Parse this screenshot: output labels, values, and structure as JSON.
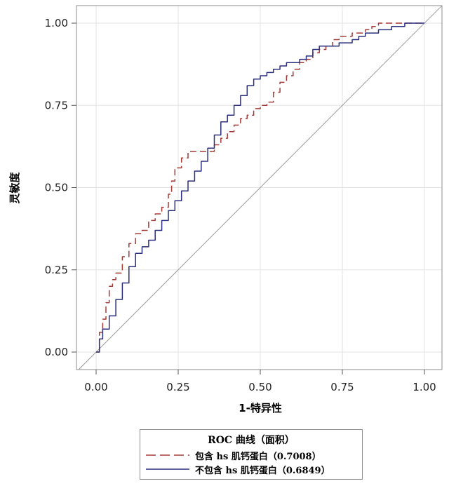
{
  "chart_data": {
    "type": "line",
    "title": "",
    "xlabel": "1-特异性",
    "ylabel": "灵敏度",
    "xlim": [
      0,
      1
    ],
    "ylim": [
      0,
      1
    ],
    "x_ticks": [
      "0.00",
      "0.25",
      "0.50",
      "0.75",
      "1.00"
    ],
    "y_ticks": [
      "0.00",
      "0.25",
      "0.50",
      "0.75",
      "1.00"
    ],
    "grid": true,
    "legend_title": "ROC 曲线（面积）",
    "legend_position": "bottom-center",
    "reference_line": {
      "x": [
        0,
        1
      ],
      "y": [
        0,
        1
      ],
      "color": "#9a9a9a"
    },
    "series": [
      {
        "name": "包含 hs 肌钙蛋白（0.7008）",
        "color": "#a33b36",
        "dash": true,
        "x": [
          0,
          0.01,
          0.02,
          0.03,
          0.04,
          0.05,
          0.06,
          0.08,
          0.1,
          0.12,
          0.14,
          0.16,
          0.18,
          0.2,
          0.22,
          0.23,
          0.24,
          0.26,
          0.28,
          0.3,
          0.32,
          0.34,
          0.36,
          0.38,
          0.4,
          0.42,
          0.44,
          0.46,
          0.48,
          0.5,
          0.52,
          0.54,
          0.56,
          0.58,
          0.6,
          0.62,
          0.64,
          0.66,
          0.68,
          0.7,
          0.72,
          0.74,
          0.76,
          0.78,
          0.8,
          0.82,
          0.84,
          0.86,
          0.88,
          0.9,
          0.95,
          1.0
        ],
        "y": [
          0,
          0.06,
          0.1,
          0.15,
          0.2,
          0.22,
          0.24,
          0.29,
          0.33,
          0.36,
          0.37,
          0.4,
          0.42,
          0.44,
          0.48,
          0.52,
          0.56,
          0.59,
          0.61,
          0.61,
          0.61,
          0.61,
          0.63,
          0.65,
          0.67,
          0.69,
          0.71,
          0.72,
          0.74,
          0.75,
          0.76,
          0.79,
          0.82,
          0.84,
          0.86,
          0.88,
          0.89,
          0.91,
          0.92,
          0.93,
          0.95,
          0.96,
          0.96,
          0.97,
          0.97,
          0.98,
          0.99,
          1.0,
          1.0,
          1.0,
          1.0,
          1.0
        ]
      },
      {
        "name": "不包含 hs 肌钙蛋白（0.6849）",
        "color": "#2b2f7d",
        "dash": false,
        "x": [
          0,
          0.01,
          0.02,
          0.04,
          0.06,
          0.08,
          0.1,
          0.12,
          0.14,
          0.16,
          0.18,
          0.2,
          0.22,
          0.24,
          0.26,
          0.28,
          0.3,
          0.32,
          0.34,
          0.36,
          0.38,
          0.4,
          0.42,
          0.44,
          0.46,
          0.48,
          0.5,
          0.52,
          0.54,
          0.56,
          0.58,
          0.6,
          0.62,
          0.64,
          0.66,
          0.68,
          0.7,
          0.72,
          0.74,
          0.76,
          0.78,
          0.8,
          0.82,
          0.84,
          0.86,
          0.88,
          0.9,
          0.92,
          0.94,
          0.96,
          1.0
        ],
        "y": [
          0,
          0.04,
          0.07,
          0.11,
          0.16,
          0.21,
          0.26,
          0.3,
          0.32,
          0.34,
          0.37,
          0.4,
          0.43,
          0.46,
          0.49,
          0.52,
          0.55,
          0.58,
          0.62,
          0.66,
          0.7,
          0.72,
          0.75,
          0.78,
          0.81,
          0.83,
          0.84,
          0.85,
          0.86,
          0.87,
          0.88,
          0.88,
          0.89,
          0.9,
          0.92,
          0.93,
          0.93,
          0.93,
          0.94,
          0.94,
          0.95,
          0.96,
          0.97,
          0.97,
          0.98,
          0.98,
          0.99,
          0.99,
          1.0,
          1.0,
          1.0
        ]
      }
    ]
  }
}
